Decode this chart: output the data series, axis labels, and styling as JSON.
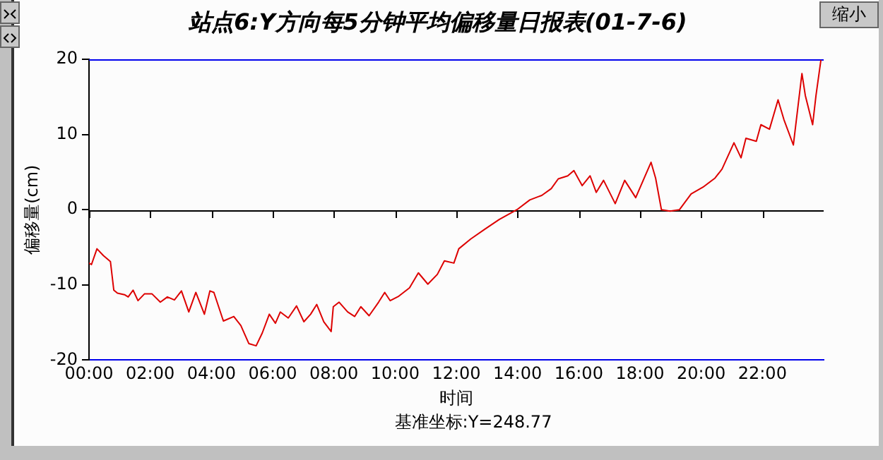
{
  "chart_data": {
    "type": "line",
    "title": "站点6:Y方向每5分钟平均偏移量日报表(01-7-6)",
    "xlabel": "时间",
    "ylabel": "偏移量(cm)",
    "annotations": [
      "基准坐标:Y=248.77",
      "缩小"
    ],
    "x": [
      0,
      0.08,
      0.26,
      0.47,
      0.7,
      0.81,
      0.93,
      1.16,
      1.28,
      1.44,
      1.6,
      1.81,
      2.06,
      2.33,
      2.56,
      2.79,
      3.02,
      3.26,
      3.49,
      3.77,
      3.95,
      4.08,
      4.39,
      4.73,
      4.96,
      5.22,
      5.46,
      5.66,
      5.89,
      6.09,
      6.25,
      6.51,
      6.78,
      7.02,
      7.24,
      7.44,
      7.67,
      7.91,
      7.98,
      8.17,
      8.45,
      8.68,
      8.88,
      9.15,
      9.46,
      9.66,
      9.84,
      10.12,
      10.47,
      10.76,
      11.07,
      11.38,
      11.61,
      11.92,
      12.08,
      12.47,
      12.93,
      13.4,
      13.98,
      14.4,
      14.79,
      15.1,
      15.33,
      15.64,
      15.84,
      16.11,
      16.37,
      16.57,
      16.81,
      17.19,
      17.5,
      17.86,
      18.36,
      18.51,
      18.7,
      18.98,
      19.29,
      19.67,
      20.06,
      20.45,
      20.68,
      21.07,
      21.3,
      21.46,
      21.8,
      21.95,
      22.23,
      22.51,
      22.7,
      23.01,
      23.29,
      23.4,
      23.64,
      23.75,
      23.91
    ],
    "series": [
      {
        "color": "#dd0000",
        "values": [
          -7.1,
          -7.3,
          -5.2,
          -6.1,
          -6.9,
          -10.7,
          -11.1,
          -11.3,
          -11.6,
          -10.7,
          -12.1,
          -11.2,
          -11.2,
          -12.3,
          -11.6,
          -12,
          -10.8,
          -13.6,
          -11,
          -13.9,
          -10.8,
          -11,
          -14.8,
          -14.2,
          -15.4,
          -17.8,
          -18.1,
          -16.4,
          -13.9,
          -15.1,
          -13.6,
          -14.4,
          -12.8,
          -14.9,
          -13.9,
          -12.6,
          -14.9,
          -16.2,
          -12.9,
          -12.3,
          -13.6,
          -14.2,
          -12.9,
          -14.1,
          -12.3,
          -11,
          -12.1,
          -11.5,
          -10.4,
          -8.4,
          -9.9,
          -8.6,
          -6.8,
          -7.1,
          -5.2,
          -3.9,
          -2.6,
          -1.3,
          0,
          1.3,
          1.9,
          2.8,
          4.1,
          4.5,
          5.2,
          3.2,
          4.5,
          2.3,
          3.9,
          0.8,
          3.9,
          1.6,
          6.3,
          4.2,
          0,
          -0.2,
          0,
          2.1,
          3,
          4.2,
          5.4,
          8.9,
          6.9,
          9.5,
          9.1,
          11.3,
          10.7,
          14.6,
          12,
          8.6,
          18.1,
          15.2,
          11.3,
          15.2,
          19.9
        ]
      }
    ],
    "xlim": [
      0,
      24
    ],
    "xticks": [
      {
        "value": 0,
        "label": "00:00"
      },
      {
        "value": 2,
        "label": "02:00"
      },
      {
        "value": 4,
        "label": "04:00"
      },
      {
        "value": 6,
        "label": "06:00"
      },
      {
        "value": 8,
        "label": "08:00"
      },
      {
        "value": 10,
        "label": "10:00"
      },
      {
        "value": 12,
        "label": "12:00"
      },
      {
        "value": 14,
        "label": "14:00"
      },
      {
        "value": 16,
        "label": "16:00"
      },
      {
        "value": 18,
        "label": "18:00"
      },
      {
        "value": 20,
        "label": "20:00"
      },
      {
        "value": 22,
        "label": "22:00"
      }
    ],
    "ylim": [
      -20,
      20
    ],
    "yticks": [
      -20,
      -10,
      0,
      10,
      20
    ],
    "ref_lines": [
      {
        "axis": "y",
        "value": 0,
        "color": "#000000"
      }
    ],
    "legend": false,
    "marker": "none",
    "line_style": "solid"
  }
}
